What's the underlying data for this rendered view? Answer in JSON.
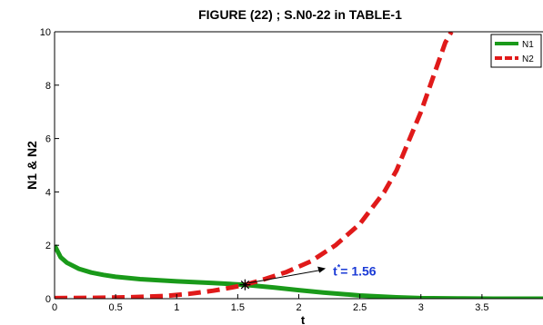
{
  "chart_data": {
    "type": "line",
    "title": "FIGURE (22) ; S.N0-22 in TABLE-1",
    "xlabel": "t",
    "ylabel": "N1 & N2",
    "xlim": [
      0,
      4
    ],
    "ylim": [
      0,
      10
    ],
    "x_ticks": [
      0,
      0.5,
      1,
      1.5,
      2,
      2.5,
      3,
      3.5
    ],
    "x_tick_labels": [
      "0",
      "0.5",
      "1",
      "1.5",
      "2",
      "2.5",
      "3",
      "3.5"
    ],
    "y_ticks": [
      0,
      2,
      4,
      6,
      8,
      10
    ],
    "y_tick_labels": [
      "0",
      "2",
      "4",
      "6",
      "8",
      "10"
    ],
    "grid": false,
    "legend_position": "top-right",
    "series": [
      {
        "name": "N1",
        "color": "#1a9a1a",
        "style": "solid",
        "x": [
          0,
          0.05,
          0.1,
          0.2,
          0.3,
          0.4,
          0.5,
          0.7,
          1.0,
          1.3,
          1.56,
          1.8,
          2.0,
          2.2,
          2.5,
          2.8,
          3.0,
          3.3,
          3.6,
          3.9,
          4.0
        ],
        "y": [
          2.0,
          1.55,
          1.35,
          1.12,
          0.98,
          0.89,
          0.82,
          0.73,
          0.65,
          0.59,
          0.52,
          0.42,
          0.32,
          0.23,
          0.12,
          0.05,
          0.02,
          0.01,
          0.0,
          0.0,
          0.0
        ]
      },
      {
        "name": "N2",
        "color": "#e01a1a",
        "style": "dashed",
        "x": [
          0,
          0.3,
          0.6,
          0.9,
          1.1,
          1.3,
          1.45,
          1.56,
          1.7,
          1.9,
          2.1,
          2.3,
          2.5,
          2.7,
          2.8,
          2.9,
          3.0,
          3.1,
          3.2,
          3.25
        ],
        "y": [
          0.02,
          0.03,
          0.05,
          0.1,
          0.18,
          0.3,
          0.42,
          0.52,
          0.7,
          1.0,
          1.4,
          2.0,
          2.8,
          4.0,
          4.8,
          5.9,
          7.0,
          8.3,
          9.6,
          10.0
        ]
      }
    ],
    "annotation": {
      "x": 1.56,
      "y": 0.52,
      "marker": "*",
      "label_main": "t",
      "label_sup": "*",
      "label_rest": "= 1.56",
      "label_x": 2.28,
      "label_y": 1.0,
      "color": "#1a3ad6"
    }
  }
}
